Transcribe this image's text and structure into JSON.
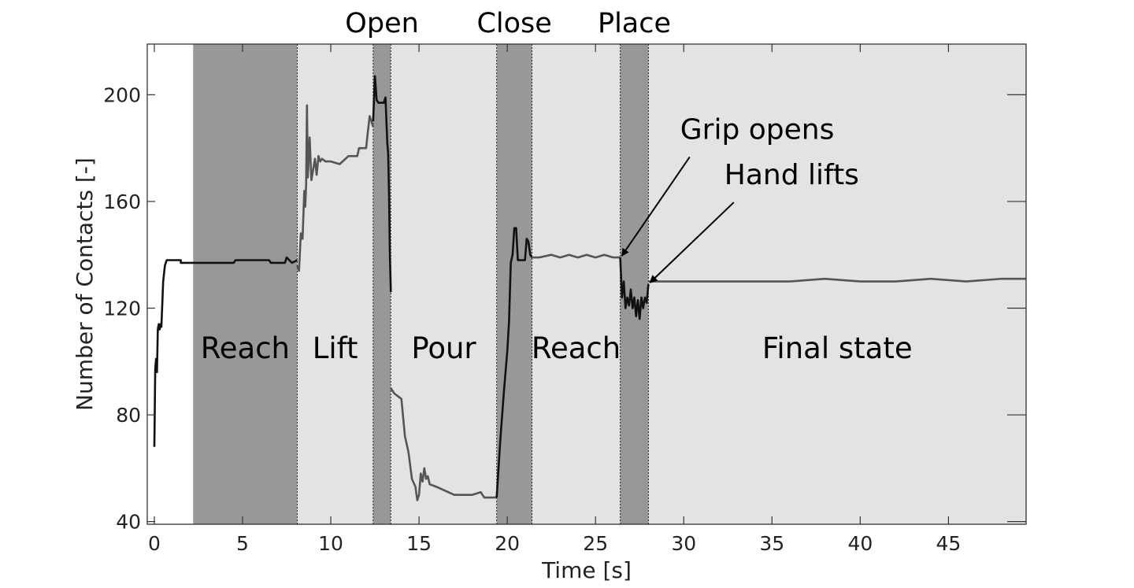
{
  "chart_data": {
    "type": "line",
    "xlabel": "Time [s]",
    "ylabel": "Number of Contacts [-]",
    "xlim": [
      -0.4,
      49.4
    ],
    "ylim": [
      39,
      219
    ],
    "xticks": [
      0,
      5,
      10,
      15,
      20,
      25,
      30,
      35,
      40,
      45
    ],
    "yticks": [
      40,
      80,
      120,
      160,
      200
    ],
    "grid": false,
    "phases": [
      {
        "label": "Reach",
        "position": "middle",
        "start": 2.2,
        "end": 8.1,
        "shade": "dark"
      },
      {
        "label": "Lift",
        "position": "middle",
        "start": 8.1,
        "end": 12.4,
        "shade": "light"
      },
      {
        "label": "Open",
        "position": "top",
        "start": 12.4,
        "end": 13.4,
        "shade": "dark"
      },
      {
        "label": "Pour",
        "position": "middle",
        "start": 13.4,
        "end": 19.4,
        "shade": "light"
      },
      {
        "label": "Close",
        "position": "top",
        "start": 19.4,
        "end": 21.4,
        "shade": "dark"
      },
      {
        "label": "Reach",
        "position": "middle",
        "start": 21.4,
        "end": 26.4,
        "shade": "light"
      },
      {
        "label": "Place",
        "position": "top",
        "start": 26.4,
        "end": 28.0,
        "shade": "dark"
      },
      {
        "label": "Final state",
        "position": "middle",
        "start": 28.0,
        "end": 49.4,
        "shade": "light"
      }
    ],
    "annotations": [
      {
        "text": "Grip opens",
        "point": [
          26.4,
          139
        ],
        "text_pos": [
          29.8,
          187
        ]
      },
      {
        "text": "Hand lifts",
        "point": [
          28.0,
          129
        ],
        "text_pos": [
          32.3,
          170
        ]
      }
    ],
    "series": [
      {
        "color": "#111111",
        "x": [
          0.0,
          0.05,
          0.1,
          0.15,
          0.2,
          0.25,
          0.3,
          0.35,
          0.4,
          0.45,
          0.5,
          0.6,
          0.7,
          0.8,
          0.9,
          1.5,
          1.5,
          2.5,
          3.5,
          4.5,
          4.6,
          5.5,
          5.6,
          6.5,
          6.6,
          7.0,
          7.1,
          7.4,
          7.5,
          7.8,
          8.1
        ],
        "y": [
          68,
          97,
          101,
          96,
          112,
          114,
          112,
          114,
          113,
          121,
          130,
          136,
          138,
          138,
          138,
          138,
          137,
          137,
          137,
          137,
          138,
          138,
          138,
          138,
          137,
          137,
          137,
          137,
          139,
          137,
          138
        ]
      },
      {
        "color": "#555555",
        "x": [
          8.1,
          8.2,
          8.3,
          8.4,
          8.5,
          8.55,
          8.6,
          8.65,
          8.7,
          8.8,
          8.9,
          9.0,
          9.1,
          9.2,
          9.3,
          9.4,
          9.5,
          9.7,
          10.0,
          10.5,
          11.0,
          11.5,
          11.6,
          12.0,
          12.1,
          12.2,
          12.4
        ],
        "y": [
          136,
          134,
          148,
          146,
          164,
          158,
          166,
          196,
          169,
          184,
          168,
          172,
          176,
          170,
          177,
          175,
          176,
          175,
          175,
          174,
          177,
          177,
          180,
          180,
          186,
          192,
          188
        ]
      },
      {
        "color": "#111111",
        "x": [
          12.4,
          12.5,
          12.6,
          12.7,
          13.0,
          13.1,
          13.2,
          13.25,
          13.3,
          13.35,
          13.4
        ],
        "y": [
          190,
          207,
          198,
          197,
          197,
          199,
          182,
          178,
          163,
          140,
          126
        ]
      },
      {
        "color": "#555555",
        "x": [
          13.4,
          13.6,
          13.8,
          14.0,
          14.2,
          14.4,
          14.6,
          14.8,
          14.9,
          15.0,
          15.1,
          15.2,
          15.3,
          15.4,
          15.5,
          15.6,
          16.0,
          17.0,
          18.0,
          18.5,
          18.7,
          19.0,
          19.4
        ],
        "y": [
          90,
          88,
          87,
          86,
          72,
          66,
          56,
          53,
          48,
          50,
          58,
          55,
          60,
          56,
          57,
          54,
          53,
          50,
          50,
          51,
          49,
          49,
          49
        ]
      },
      {
        "color": "#111111",
        "x": [
          19.4,
          19.6,
          19.8,
          20.0,
          20.1,
          20.2,
          20.3,
          20.4,
          20.5,
          20.6,
          20.8,
          21.0,
          21.1,
          21.2,
          21.3,
          21.4
        ],
        "y": [
          49,
          70,
          88,
          104,
          115,
          137,
          140,
          150,
          150,
          138,
          138,
          138,
          146,
          145,
          140,
          139
        ]
      },
      {
        "color": "#555555",
        "x": [
          21.4,
          21.8,
          22.5,
          23.0,
          23.5,
          24.0,
          24.5,
          25.0,
          25.5,
          26.0,
          26.4
        ],
        "y": [
          139,
          139,
          140,
          139,
          140,
          139,
          140,
          139,
          140,
          139,
          139
        ]
      },
      {
        "color": "#111111",
        "x": [
          26.4,
          26.5,
          26.6,
          26.7,
          26.8,
          26.9,
          27.0,
          27.1,
          27.2,
          27.3,
          27.4,
          27.5,
          27.6,
          27.7,
          27.8,
          27.9,
          28.0
        ],
        "y": [
          139,
          124,
          130,
          120,
          124,
          121,
          127,
          120,
          124,
          117,
          123,
          116,
          124,
          120,
          124,
          122,
          129
        ]
      },
      {
        "color": "#555555",
        "x": [
          28.0,
          30.0,
          32.0,
          34.0,
          36.0,
          38.0,
          40.0,
          42.0,
          44.0,
          46.0,
          48.0,
          49.4
        ],
        "y": [
          130,
          130,
          130,
          130,
          130,
          131,
          130,
          130,
          131,
          130,
          131,
          131
        ]
      }
    ]
  }
}
